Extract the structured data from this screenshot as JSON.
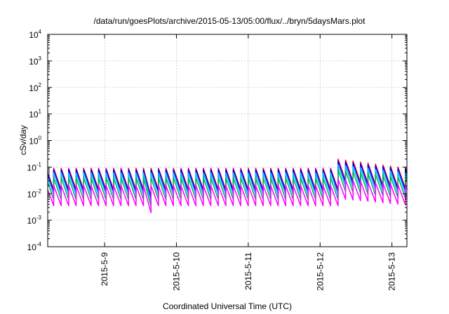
{
  "chart_data": {
    "type": "line",
    "title": "/data/run/goesPlots/archive/2015-05-13/05:00/flux/../bryn/5daysMars.plot",
    "xlabel": "Coordinated Universal Time (UTC)",
    "ylabel": "cSv/day",
    "yscale": "log",
    "ylim": [
      0.0001,
      10000
    ],
    "y_ticks": [
      {
        "base": "10",
        "exp": "-4",
        "value": 0.0001
      },
      {
        "base": "10",
        "exp": "-3",
        "value": 0.001
      },
      {
        "base": "10",
        "exp": "-2",
        "value": 0.01
      },
      {
        "base": "10",
        "exp": "-1",
        "value": 0.1
      },
      {
        "base": "10",
        "exp": "0",
        "value": 1
      },
      {
        "base": "10",
        "exp": "1",
        "value": 10
      },
      {
        "base": "10",
        "exp": "2",
        "value": 100
      },
      {
        "base": "10",
        "exp": "3",
        "value": 1000
      },
      {
        "base": "10",
        "exp": "4",
        "value": 10000
      }
    ],
    "xlim": [
      "2015-05-08 05:00",
      "2015-05-13 05:00"
    ],
    "x_ticks": [
      {
        "label": "2015-5-9",
        "value": "2015-05-09 00:00"
      },
      {
        "label": "2015-5-10",
        "value": "2015-05-10 00:00"
      },
      {
        "label": "2015-5-11",
        "value": "2015-05-11 00:00"
      },
      {
        "label": "2015-5-12",
        "value": "2015-05-12 00:00"
      },
      {
        "label": "2015-5-13",
        "value": "2015-05-13 00:00"
      }
    ],
    "grid": true,
    "sawtooth_period_hours": 2.5,
    "series": [
      {
        "color": "#ff0000",
        "peak": 0.09,
        "trough": 0.014,
        "event_peak": 0.2
      },
      {
        "color": "#0000ff",
        "peak": 0.08,
        "trough": 0.012,
        "event_peak": 0.17
      },
      {
        "color": "#00c0ff",
        "peak": 0.06,
        "trough": 0.009,
        "event_peak": 0.12
      },
      {
        "color": "#00b060",
        "peak": 0.04,
        "trough": 0.006,
        "event_peak": 0.08
      },
      {
        "color": "#ff00ff",
        "peak": 0.02,
        "trough": 0.0035,
        "event_peak": 0.035
      }
    ]
  }
}
